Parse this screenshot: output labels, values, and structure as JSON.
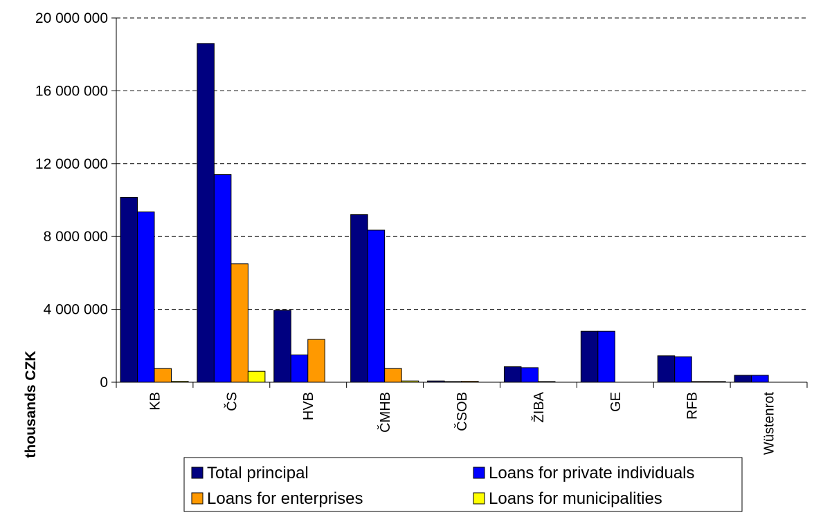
{
  "chart_data": {
    "type": "bar",
    "categories": [
      "KB",
      "ČS",
      "HVB",
      "ČMHB",
      "ČSOB",
      "ŽIBA",
      "GE",
      "RFB",
      "Wüstenrot"
    ],
    "series": [
      {
        "name": "Total principal",
        "color": "#000080",
        "values": [
          10150000,
          18600000,
          3950000,
          9200000,
          70000,
          850000,
          2800000,
          1450000,
          380000
        ]
      },
      {
        "name": "Loans for private individuals",
        "color": "#0000FF",
        "values": [
          9350000,
          11400000,
          1500000,
          8350000,
          20000,
          800000,
          2800000,
          1400000,
          380000
        ]
      },
      {
        "name": "Loans for enterprises",
        "color": "#FF9900",
        "values": [
          750000,
          6500000,
          2350000,
          750000,
          50000,
          30000,
          0,
          40000,
          0
        ]
      },
      {
        "name": "Loans for municipalities",
        "color": "#FFFF00",
        "values": [
          50000,
          600000,
          0,
          70000,
          0,
          0,
          0,
          20000,
          0
        ]
      }
    ],
    "ylabel": "thousands CZK",
    "ylim": [
      0,
      20000000
    ],
    "yticks": [
      {
        "value": 0,
        "label": "0"
      },
      {
        "value": 4000000,
        "label": "4 000 000"
      },
      {
        "value": 8000000,
        "label": "8 000 000"
      },
      {
        "value": 12000000,
        "label": "12 000 000"
      },
      {
        "value": 16000000,
        "label": "16 000 000"
      },
      {
        "value": 20000000,
        "label": "20 000 000"
      }
    ],
    "grid": "horizontal-dashed",
    "legend_position": "bottom"
  }
}
